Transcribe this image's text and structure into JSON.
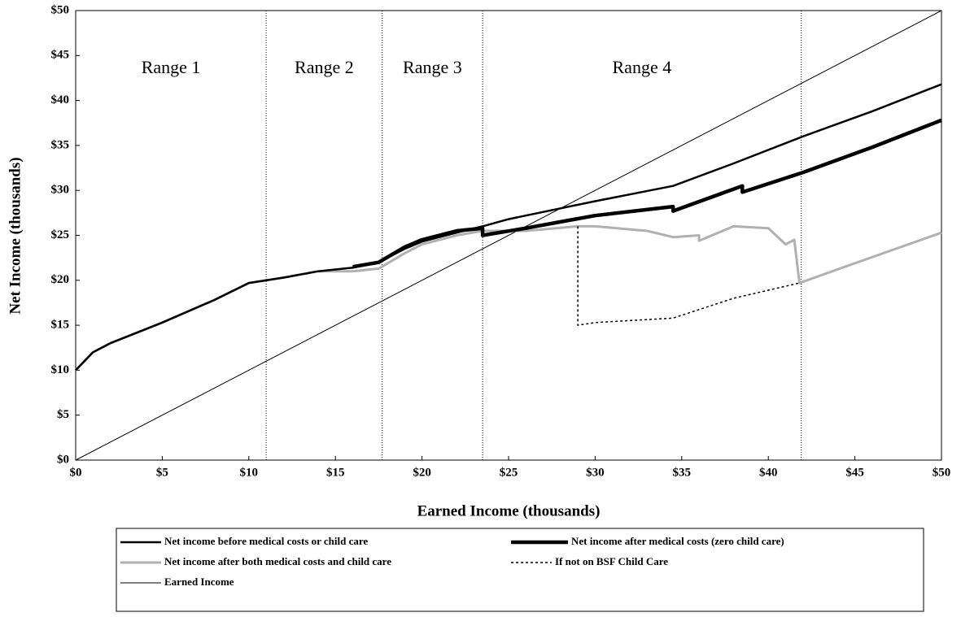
{
  "chart_data": {
    "type": "line",
    "x_label": "Earned Income (thousands)",
    "y_label": "Net Income (thousands)",
    "xlim": [
      0,
      50
    ],
    "ylim": [
      0,
      50
    ],
    "xticks": [
      {
        "value": 0,
        "label": "$0"
      },
      {
        "value": 5,
        "label": "$5"
      },
      {
        "value": 10,
        "label": "$10"
      },
      {
        "value": 15,
        "label": "$15"
      },
      {
        "value": 20,
        "label": "$20"
      },
      {
        "value": 25,
        "label": "$25"
      },
      {
        "value": 30,
        "label": "$30"
      },
      {
        "value": 35,
        "label": "$35"
      },
      {
        "value": 40,
        "label": "$40"
      },
      {
        "value": 45,
        "label": "$45"
      },
      {
        "value": 50,
        "label": "$50"
      }
    ],
    "yticks": [
      {
        "value": 0,
        "label": "$0"
      },
      {
        "value": 5,
        "label": "$5"
      },
      {
        "value": 10,
        "label": "$10"
      },
      {
        "value": 15,
        "label": "$15"
      },
      {
        "value": 20,
        "label": "$20"
      },
      {
        "value": 25,
        "label": "$25"
      },
      {
        "value": 30,
        "label": "$30"
      },
      {
        "value": 35,
        "label": "$35"
      },
      {
        "value": 40,
        "label": "$40"
      },
      {
        "value": 45,
        "label": "$45"
      },
      {
        "value": 50,
        "label": "$50"
      }
    ],
    "range_bounds": [
      11,
      17.7,
      23.5,
      41.9
    ],
    "range_labels": [
      "Range 1",
      "Range 2",
      "Range 3",
      "Range 4"
    ],
    "series": [
      {
        "name": "Net income before medical costs or child care",
        "color": "#000000",
        "width": 2.5,
        "dash": "none",
        "x": [
          0,
          1,
          2,
          5,
          8,
          10,
          12,
          14,
          16,
          17.5,
          19,
          20,
          22,
          23.5,
          25,
          28,
          30,
          34.5,
          38,
          42,
          46,
          50
        ],
        "values": [
          10,
          12,
          13,
          15.3,
          17.8,
          19.7,
          20.3,
          21,
          21.4,
          22,
          23.5,
          24.3,
          25.3,
          26,
          26.8,
          28,
          28.8,
          30.5,
          33,
          36,
          38.8,
          41.8
        ]
      },
      {
        "name": "Net income after medical costs (zero child care)",
        "color": "#000000",
        "width": 4.5,
        "dash": "none",
        "x": [
          16,
          17.5,
          19,
          20,
          22,
          23.5,
          23.5,
          26,
          28,
          30,
          34.5,
          34.5,
          38.5,
          38.5,
          42,
          46,
          50
        ],
        "values": [
          21.5,
          22,
          23.7,
          24.5,
          25.5,
          25.8,
          25,
          25.8,
          26.5,
          27.2,
          28.2,
          27.7,
          30.5,
          29.8,
          32,
          34.8,
          37.8
        ]
      },
      {
        "name": "Net income after both medical costs and child care",
        "color": "#b0b0b0",
        "width": 3,
        "dash": "none",
        "x": [
          0,
          1,
          2,
          5,
          8,
          10,
          12,
          14,
          16,
          17.5,
          19,
          20,
          22,
          23.5,
          26,
          29,
          30,
          33,
          34.5,
          36,
          36,
          38,
          40,
          41,
          41.5,
          41.8,
          45,
          50
        ],
        "values": [
          10,
          12,
          13,
          15.3,
          17.8,
          19.7,
          20.3,
          21,
          21,
          21.3,
          23,
          24,
          25,
          25.5,
          25.5,
          26,
          26,
          25.5,
          24.8,
          25,
          24.4,
          26,
          25.8,
          24,
          24.5,
          19.7,
          21.9,
          25.3
        ]
      },
      {
        "name": "If not on BSF Child Care",
        "color": "#000000",
        "width": 1.5,
        "dash": "3 3",
        "x": [
          29,
          29,
          30,
          34.5,
          38,
          41.8
        ],
        "values": [
          26,
          15,
          15.3,
          15.8,
          18,
          19.7
        ]
      },
      {
        "name": "Earned Income",
        "color": "#000000",
        "width": 1,
        "dash": "none",
        "x": [
          0,
          50
        ],
        "values": [
          0,
          50
        ]
      }
    ]
  }
}
